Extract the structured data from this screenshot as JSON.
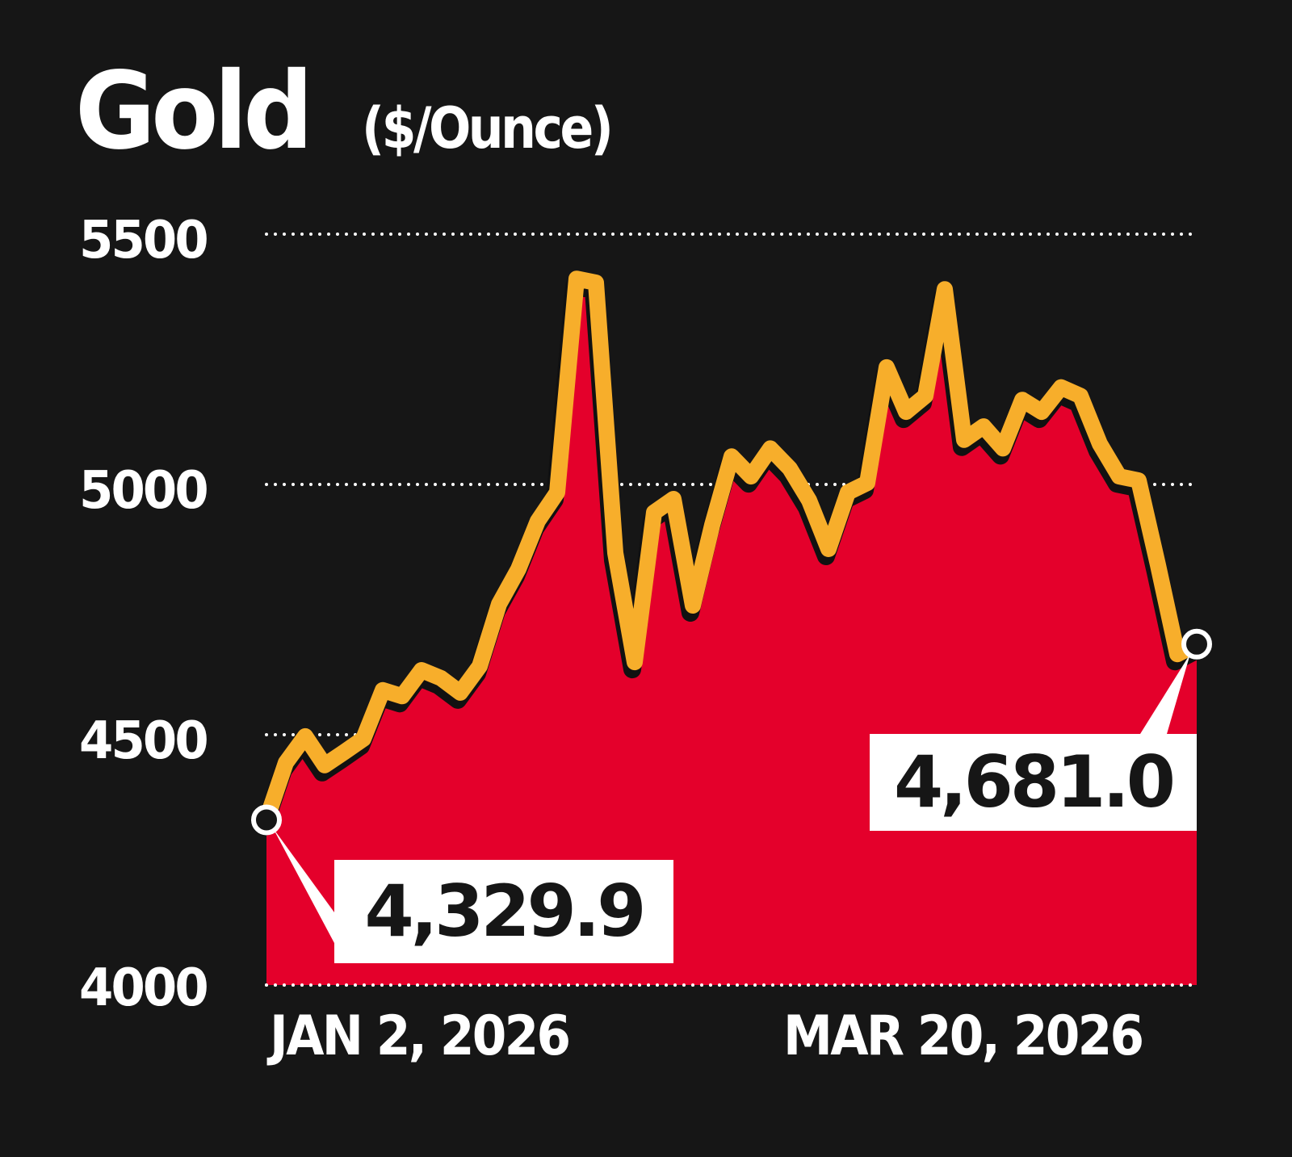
{
  "header": {
    "title": "Gold",
    "subtitle": "($/Ounce)"
  },
  "axes": {
    "y_ticks": [
      "5500",
      "5000",
      "4500",
      "4000"
    ],
    "x_ticks": [
      "JAN 2, 2026",
      "MAR 20, 2026"
    ]
  },
  "callouts": {
    "start_value": "4,329.9",
    "end_value": "4,681.0"
  },
  "colors": {
    "background": "#161616",
    "area_fill": "#E4002B",
    "line": "#F7AE2B",
    "gridline": "#FFFFFF",
    "callout_bg": "#FFFFFF",
    "callout_text": "#161616"
  },
  "chart_data": {
    "type": "area",
    "title": "Gold",
    "subtitle": "($/Ounce)",
    "xlabel": "",
    "ylabel": "$/Ounce",
    "ylim": [
      4000,
      5500
    ],
    "yticks": [
      4000,
      4500,
      5000,
      5500
    ],
    "grid": "horizontal dotted",
    "legend": "none",
    "x_start_label": "JAN 2, 2026",
    "x_end_label": "MAR 20, 2026",
    "annotations": [
      {
        "label": "4,329.9",
        "point": "start",
        "value": 4329.9
      },
      {
        "label": "4,681.0",
        "point": "end",
        "value": 4681.0
      }
    ],
    "x": [
      0,
      1,
      2,
      3,
      4,
      5,
      6,
      7,
      8,
      9,
      10,
      11,
      12,
      13,
      14,
      15,
      16,
      17,
      18,
      19,
      20,
      21,
      22,
      23,
      24,
      25,
      26,
      27,
      28,
      29,
      30,
      31,
      32,
      33,
      34,
      35,
      36,
      37,
      38,
      39,
      40,
      41,
      42,
      43,
      44,
      45,
      46,
      47,
      48
    ],
    "values": [
      4329.9,
      4444,
      4497,
      4439,
      4465,
      4492,
      4589,
      4577,
      4629,
      4613,
      4584,
      4637,
      4761,
      4831,
      4927,
      4984,
      5411,
      5403,
      4863,
      4645,
      4944,
      4971,
      4758,
      4919,
      5056,
      5016,
      5072,
      5032,
      4968,
      4871,
      4984,
      5003,
      5234,
      5145,
      5177,
      5390,
      5089,
      5116,
      5072,
      5169,
      5145,
      5194,
      5177,
      5081,
      5016,
      5008,
      4839,
      4661,
      4681.0
    ]
  }
}
